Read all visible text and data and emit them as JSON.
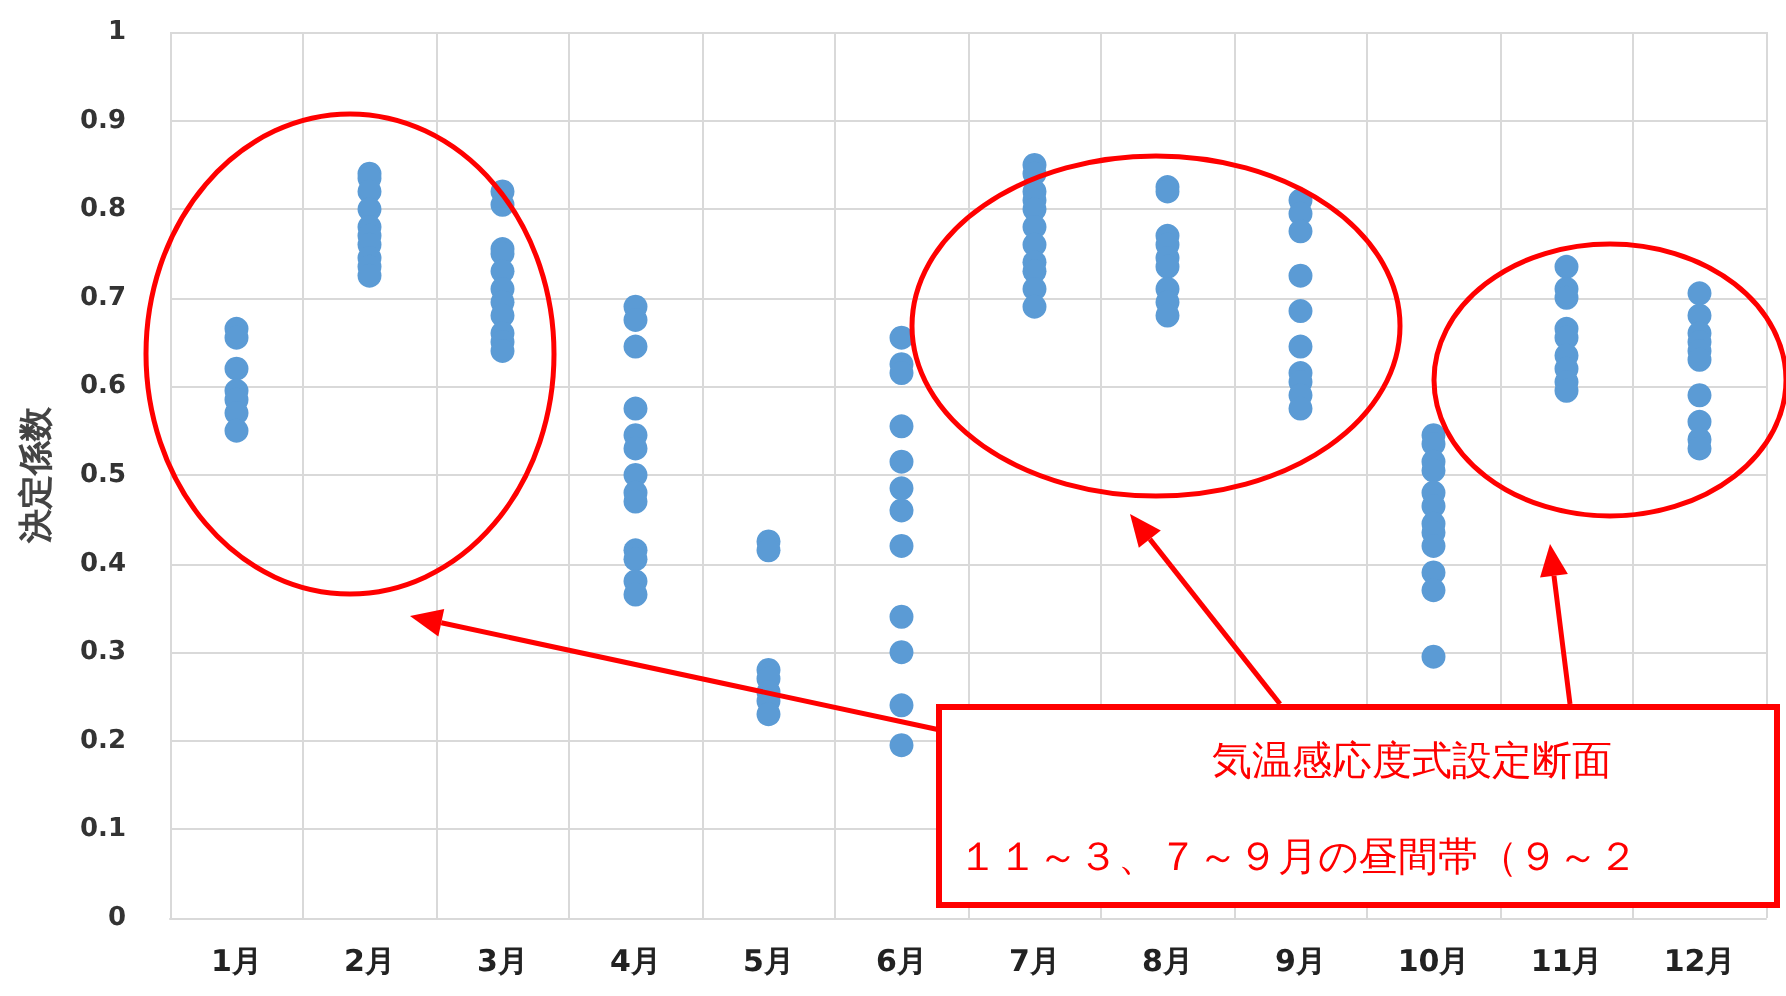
{
  "chart_data": {
    "type": "scatter",
    "ylabel": "決定係数",
    "categories": [
      "1月",
      "2月",
      "3月",
      "4月",
      "5月",
      "6月",
      "7月",
      "8月",
      "9月",
      "10月",
      "11月",
      "12月"
    ],
    "series": [
      {
        "color": "#5b9bd5",
        "x": [
          "1月",
          "1月",
          "1月",
          "1月",
          "1月",
          "1月",
          "1月",
          "2月",
          "2月",
          "2月",
          "2月",
          "2月",
          "2月",
          "2月",
          "2月",
          "2月",
          "2月",
          "3月",
          "3月",
          "3月",
          "3月",
          "3月",
          "3月",
          "3月",
          "3月",
          "3月",
          "3月",
          "3月",
          "4月",
          "4月",
          "4月",
          "4月",
          "4月",
          "4月",
          "4月",
          "4月",
          "4月",
          "4月",
          "4月",
          "4月",
          "4月",
          "5月",
          "5月",
          "5月",
          "5月",
          "5月",
          "5月",
          "5月",
          "6月",
          "6月",
          "6月",
          "6月",
          "6月",
          "6月",
          "6月",
          "6月",
          "6月",
          "6月",
          "6月",
          "6月",
          "7月",
          "7月",
          "7月",
          "7月",
          "7月",
          "7月",
          "7月",
          "7月",
          "7月",
          "7月",
          "7月",
          "8月",
          "8月",
          "8月",
          "8月",
          "8月",
          "8月",
          "8月",
          "8月",
          "8月",
          "9月",
          "9月",
          "9月",
          "9月",
          "9月",
          "9月",
          "9月",
          "9月",
          "9月",
          "9月",
          "10月",
          "10月",
          "10月",
          "10月",
          "10月",
          "10月",
          "10月",
          "10月",
          "10月",
          "10月",
          "10月",
          "10月",
          "11月",
          "11月",
          "11月",
          "11月",
          "11月",
          "11月",
          "11月",
          "11月",
          "11月",
          "12月",
          "12月",
          "12月",
          "12月",
          "12月",
          "12月",
          "12月",
          "12月",
          "12月",
          "12月"
        ],
        "values": [
          0.665,
          0.655,
          0.62,
          0.595,
          0.585,
          0.57,
          0.55,
          0.84,
          0.835,
          0.82,
          0.8,
          0.78,
          0.77,
          0.76,
          0.745,
          0.735,
          0.725,
          0.82,
          0.805,
          0.755,
          0.75,
          0.73,
          0.71,
          0.695,
          0.68,
          0.66,
          0.65,
          0.64,
          0.69,
          0.675,
          0.645,
          0.575,
          0.545,
          0.53,
          0.5,
          0.48,
          0.47,
          0.415,
          0.405,
          0.38,
          0.365,
          0.425,
          0.415,
          0.28,
          0.27,
          0.255,
          0.245,
          0.23,
          0.655,
          0.625,
          0.615,
          0.555,
          0.515,
          0.485,
          0.46,
          0.42,
          0.34,
          0.3,
          0.24,
          0.195,
          0.85,
          0.84,
          0.82,
          0.81,
          0.8,
          0.78,
          0.76,
          0.74,
          0.73,
          0.71,
          0.69,
          0.825,
          0.82,
          0.77,
          0.76,
          0.745,
          0.735,
          0.71,
          0.695,
          0.68,
          0.81,
          0.795,
          0.775,
          0.725,
          0.685,
          0.645,
          0.615,
          0.605,
          0.59,
          0.575,
          0.545,
          0.535,
          0.515,
          0.505,
          0.48,
          0.465,
          0.445,
          0.435,
          0.42,
          0.39,
          0.37,
          0.295,
          0.735,
          0.71,
          0.7,
          0.665,
          0.655,
          0.635,
          0.62,
          0.605,
          0.595,
          0.705,
          0.68,
          0.66,
          0.65,
          0.64,
          0.63,
          0.59,
          0.56,
          0.54,
          0.53
        ]
      }
    ],
    "ylim": [
      0,
      1
    ],
    "yticks": [
      0,
      0.1,
      0.2,
      0.3,
      0.4,
      0.5,
      0.6,
      0.7,
      0.8,
      0.9,
      1
    ],
    "grid": true,
    "marker": "circle",
    "annotations": [
      "気温感応度式設定断面",
      "１１～３、７～９月の昼間帯（９～２"
    ]
  }
}
